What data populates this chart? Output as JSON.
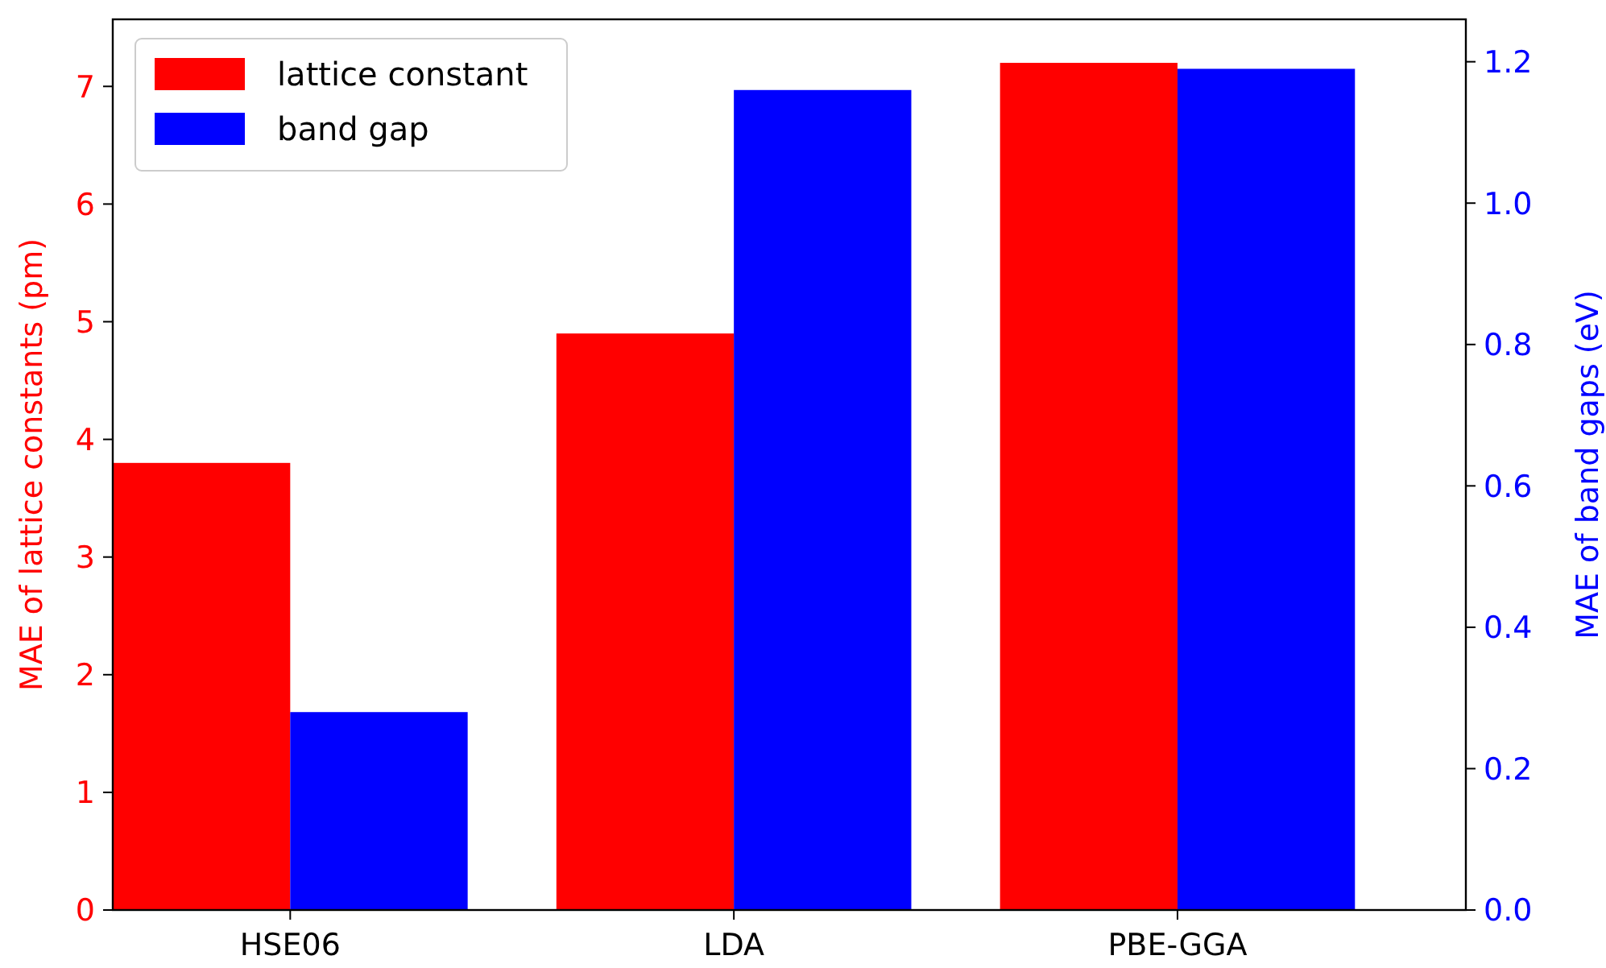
{
  "chart_data": {
    "type": "bar",
    "categories": [
      "HSE06",
      "LDA",
      "PBE-GGA"
    ],
    "series": [
      {
        "name": "lattice constant",
        "color": "#ff0000",
        "values": [
          3.8,
          4.9,
          7.2
        ]
      },
      {
        "name": "band gap",
        "color": "#0000ff",
        "values": [
          0.28,
          1.16,
          1.19
        ],
        "axis": "y2"
      }
    ],
    "ylabel": "MAE of lattice constants (pm)",
    "y2label": "MAE of band gaps (eV)",
    "ylim": [
      0,
      7.57
    ],
    "yticks": [
      0,
      1,
      2,
      3,
      4,
      5,
      6,
      7
    ],
    "y2lim": [
      0,
      1.26
    ],
    "y2ticks": [
      {
        "value": 0,
        "label": "0.0"
      },
      {
        "value": 0.2,
        "label": "0.2"
      },
      {
        "value": 0.4,
        "label": "0.4"
      },
      {
        "value": 0.6,
        "label": "0.6"
      },
      {
        "value": 0.8,
        "label": "0.8"
      },
      {
        "value": 1.0,
        "label": "1.0"
      },
      {
        "value": 1.2,
        "label": "1.2"
      }
    ],
    "legend": "top left",
    "grid": false
  }
}
